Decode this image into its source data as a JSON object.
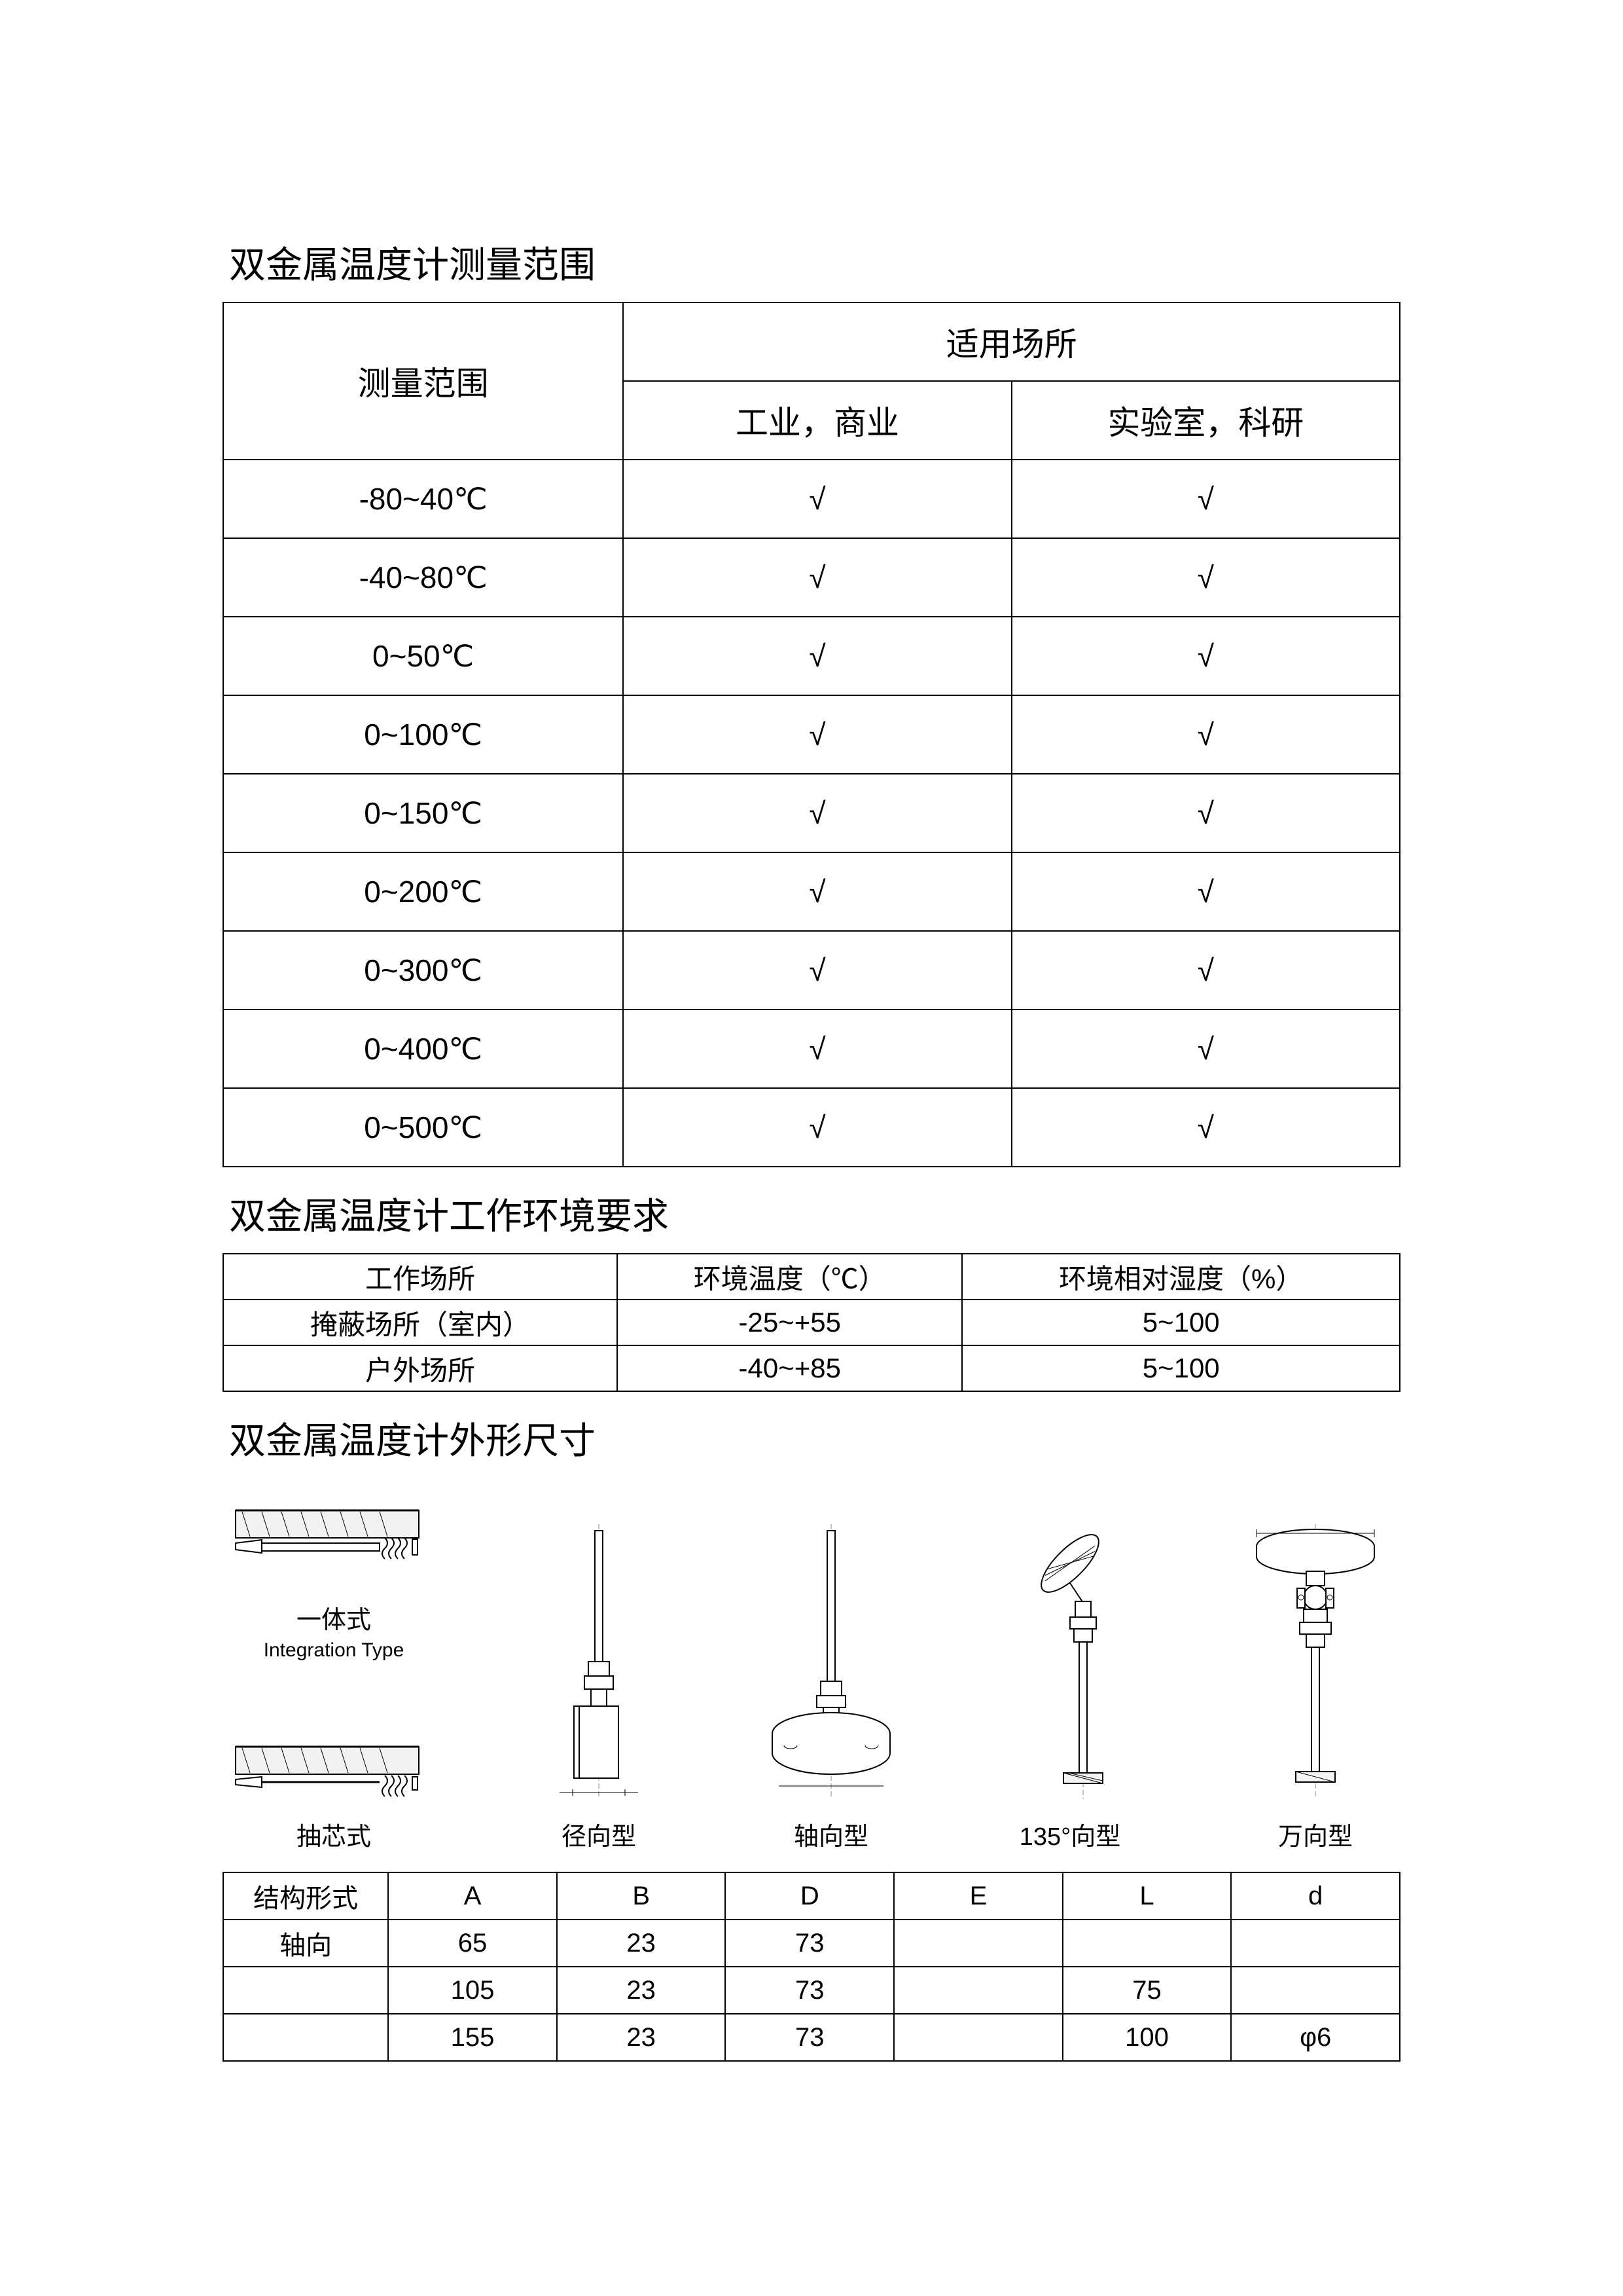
{
  "section1": {
    "title": "双金属温度计测量范围",
    "header_range": "测量范围",
    "header_app": "适用场所",
    "sub_app1": "工业，商业",
    "sub_app2": "实验室，科研",
    "rows": [
      {
        "range": "-80~40℃",
        "c1": "√",
        "c2": "√"
      },
      {
        "range": "-40~80℃",
        "c1": "√",
        "c2": "√"
      },
      {
        "range": "0~50℃",
        "c1": "√",
        "c2": "√"
      },
      {
        "range": "0~100℃",
        "c1": "√",
        "c2": "√"
      },
      {
        "range": "0~150℃",
        "c1": "√",
        "c2": "√"
      },
      {
        "range": "0~200℃",
        "c1": "√",
        "c2": "√"
      },
      {
        "range": "0~300℃",
        "c1": "√",
        "c2": "√"
      },
      {
        "range": "0~400℃",
        "c1": "√",
        "c2": "√"
      },
      {
        "range": "0~500℃",
        "c1": "√",
        "c2": "√"
      }
    ]
  },
  "section2": {
    "title": "双金属温度计工作环境要求",
    "headers": [
      "工作场所",
      "环境温度（℃）",
      "环境相对湿度（%）"
    ],
    "rows": [
      [
        "掩蔽场所（室内）",
        "-25~+55",
        "5~100"
      ],
      [
        "户外场所",
        "-40~+85",
        "5~100"
      ]
    ]
  },
  "section3": {
    "title": "双金属温度计外形尺寸",
    "diagrams": {
      "integration": {
        "label": "一体式",
        "sublabel": "Integration Type"
      },
      "drawcore": {
        "label": "抽芯式"
      },
      "radial": {
        "label": "径向型"
      },
      "axial": {
        "label": "轴向型"
      },
      "angle135": {
        "label": "135°向型"
      },
      "universal": {
        "label": "万向型"
      }
    },
    "table": {
      "headers": [
        "结构形式",
        "A",
        "B",
        "D",
        "E",
        "L",
        "d"
      ],
      "rows": [
        [
          "轴向",
          "65",
          "23",
          "73",
          "",
          "",
          ""
        ],
        [
          "",
          "105",
          "23",
          "73",
          "",
          "75",
          ""
        ],
        [
          "",
          "155",
          "23",
          "73",
          "",
          "100",
          "φ6"
        ]
      ]
    }
  }
}
